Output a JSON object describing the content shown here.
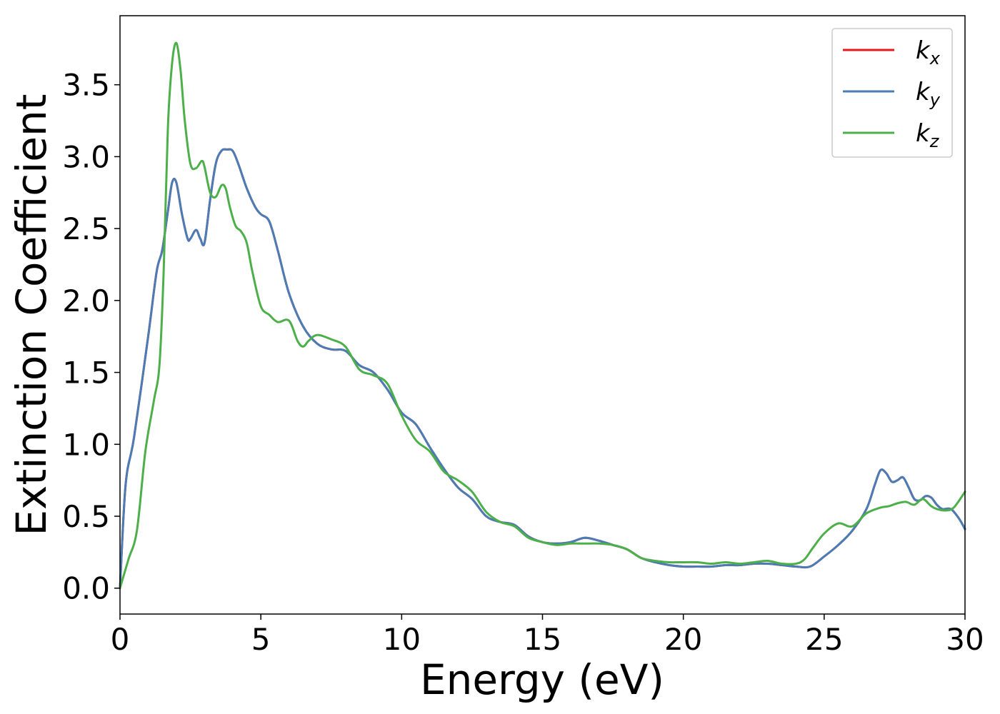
{
  "chart_data": {
    "type": "line",
    "title": "",
    "xlabel": "Energy (eV)",
    "ylabel": "Extinction Coefficient",
    "xlim": [
      0,
      30
    ],
    "ylim": [
      -0.18,
      3.98
    ],
    "xticks": [
      0,
      5,
      10,
      15,
      20,
      25,
      30
    ],
    "xtick_labels": [
      "0",
      "5",
      "10",
      "15",
      "20",
      "25",
      "30"
    ],
    "yticks": [
      0.0,
      0.5,
      1.0,
      1.5,
      2.0,
      2.5,
      3.0,
      3.5
    ],
    "ytick_labels": [
      "0.0",
      "0.5",
      "1.0",
      "1.5",
      "2.0",
      "2.5",
      "3.0",
      "3.5"
    ],
    "grid": false,
    "legend_position": "top-right",
    "series": [
      {
        "name": "k_x",
        "label_base": "k",
        "label_sub": "x",
        "color": "#e41a1c",
        "x": [
          0,
          0.2,
          0.5,
          1.0,
          1.3,
          1.5,
          1.7,
          1.85,
          2.0,
          2.2,
          2.4,
          2.5,
          2.7,
          2.85,
          3.0,
          3.2,
          3.4,
          3.6,
          3.8,
          4.0,
          4.2,
          4.5,
          4.8,
          5.0,
          5.3,
          5.6,
          6.0,
          6.5,
          7.0,
          7.5,
          8.0,
          8.5,
          9.0,
          9.5,
          10.0,
          10.5,
          11.0,
          11.5,
          12.0,
          12.5,
          13.0,
          13.5,
          14.0,
          14.5,
          15.0,
          15.5,
          16.0,
          16.5,
          17.0,
          17.5,
          18.0,
          18.5,
          19.0,
          19.5,
          20.0,
          20.5,
          21.0,
          21.5,
          22.0,
          22.5,
          23.0,
          23.5,
          24.0,
          24.5,
          25.0,
          25.5,
          26.0,
          26.5,
          26.8,
          27.0,
          27.2,
          27.4,
          27.6,
          27.8,
          28.0,
          28.2,
          28.4,
          28.6,
          28.8,
          29.0,
          29.2,
          29.5,
          29.8,
          30.0
        ],
        "y": [
          0.0,
          0.72,
          1.05,
          1.75,
          2.2,
          2.35,
          2.62,
          2.82,
          2.82,
          2.6,
          2.43,
          2.43,
          2.49,
          2.43,
          2.4,
          2.7,
          2.95,
          3.04,
          3.05,
          3.04,
          2.95,
          2.78,
          2.65,
          2.6,
          2.55,
          2.35,
          2.05,
          1.82,
          1.7,
          1.66,
          1.65,
          1.55,
          1.5,
          1.38,
          1.22,
          1.14,
          0.98,
          0.83,
          0.7,
          0.62,
          0.5,
          0.46,
          0.44,
          0.36,
          0.32,
          0.31,
          0.32,
          0.35,
          0.33,
          0.3,
          0.27,
          0.21,
          0.18,
          0.16,
          0.15,
          0.15,
          0.15,
          0.16,
          0.16,
          0.17,
          0.17,
          0.16,
          0.15,
          0.15,
          0.22,
          0.3,
          0.4,
          0.55,
          0.72,
          0.82,
          0.8,
          0.74,
          0.75,
          0.77,
          0.7,
          0.62,
          0.61,
          0.64,
          0.63,
          0.58,
          0.55,
          0.55,
          0.48,
          0.41
        ]
      },
      {
        "name": "k_y",
        "label_base": "k",
        "label_sub": "y",
        "color": "#4a7cb5",
        "x": [
          0,
          0.2,
          0.5,
          1.0,
          1.3,
          1.5,
          1.7,
          1.85,
          2.0,
          2.2,
          2.4,
          2.5,
          2.7,
          2.85,
          3.0,
          3.2,
          3.4,
          3.6,
          3.8,
          4.0,
          4.2,
          4.5,
          4.8,
          5.0,
          5.3,
          5.6,
          6.0,
          6.5,
          7.0,
          7.5,
          8.0,
          8.5,
          9.0,
          9.5,
          10.0,
          10.5,
          11.0,
          11.5,
          12.0,
          12.5,
          13.0,
          13.5,
          14.0,
          14.5,
          15.0,
          15.5,
          16.0,
          16.5,
          17.0,
          17.5,
          18.0,
          18.5,
          19.0,
          19.5,
          20.0,
          20.5,
          21.0,
          21.5,
          22.0,
          22.5,
          23.0,
          23.5,
          24.0,
          24.5,
          25.0,
          25.5,
          26.0,
          26.5,
          26.8,
          27.0,
          27.2,
          27.4,
          27.6,
          27.8,
          28.0,
          28.2,
          28.4,
          28.6,
          28.8,
          29.0,
          29.2,
          29.5,
          29.8,
          30.0
        ],
        "y": [
          0.0,
          0.72,
          1.05,
          1.75,
          2.2,
          2.35,
          2.62,
          2.82,
          2.82,
          2.6,
          2.43,
          2.43,
          2.49,
          2.43,
          2.4,
          2.7,
          2.95,
          3.04,
          3.05,
          3.04,
          2.95,
          2.78,
          2.65,
          2.6,
          2.55,
          2.35,
          2.05,
          1.82,
          1.7,
          1.66,
          1.65,
          1.55,
          1.5,
          1.38,
          1.22,
          1.14,
          0.98,
          0.83,
          0.7,
          0.62,
          0.5,
          0.46,
          0.44,
          0.36,
          0.32,
          0.31,
          0.32,
          0.35,
          0.33,
          0.3,
          0.27,
          0.21,
          0.18,
          0.16,
          0.15,
          0.15,
          0.15,
          0.16,
          0.16,
          0.17,
          0.17,
          0.16,
          0.15,
          0.15,
          0.22,
          0.3,
          0.4,
          0.55,
          0.72,
          0.82,
          0.8,
          0.74,
          0.75,
          0.77,
          0.7,
          0.62,
          0.61,
          0.64,
          0.63,
          0.58,
          0.55,
          0.55,
          0.48,
          0.41
        ]
      },
      {
        "name": "k_z",
        "label_base": "k",
        "label_sub": "z",
        "color": "#4daf4a",
        "x": [
          0,
          0.3,
          0.6,
          0.9,
          1.2,
          1.4,
          1.55,
          1.7,
          1.85,
          2.0,
          2.15,
          2.3,
          2.5,
          2.7,
          2.9,
          3.0,
          3.2,
          3.4,
          3.6,
          3.75,
          3.9,
          4.1,
          4.3,
          4.5,
          4.7,
          5.0,
          5.3,
          5.6,
          6.0,
          6.3,
          6.5,
          6.7,
          7.0,
          7.5,
          8.0,
          8.5,
          9.0,
          9.5,
          10.0,
          10.5,
          11.0,
          11.5,
          12.0,
          12.5,
          13.0,
          13.5,
          14.0,
          14.5,
          15.0,
          15.5,
          16.0,
          16.5,
          17.0,
          17.5,
          18.0,
          18.5,
          19.0,
          19.5,
          20.0,
          20.5,
          21.0,
          21.5,
          22.0,
          22.5,
          23.0,
          23.5,
          24.0,
          24.3,
          24.6,
          25.0,
          25.5,
          26.0,
          26.5,
          27.0,
          27.3,
          27.6,
          27.9,
          28.2,
          28.5,
          28.8,
          29.0,
          29.3,
          29.6,
          30.0
        ],
        "y": [
          0.0,
          0.2,
          0.4,
          0.95,
          1.3,
          1.55,
          2.2,
          3.2,
          3.65,
          3.79,
          3.6,
          3.25,
          2.95,
          2.92,
          2.97,
          2.93,
          2.75,
          2.72,
          2.8,
          2.78,
          2.65,
          2.52,
          2.48,
          2.4,
          2.2,
          1.96,
          1.9,
          1.85,
          1.86,
          1.72,
          1.68,
          1.72,
          1.76,
          1.73,
          1.68,
          1.52,
          1.48,
          1.42,
          1.2,
          1.03,
          0.95,
          0.81,
          0.75,
          0.67,
          0.53,
          0.46,
          0.43,
          0.35,
          0.32,
          0.3,
          0.31,
          0.31,
          0.31,
          0.3,
          0.27,
          0.21,
          0.19,
          0.18,
          0.18,
          0.18,
          0.17,
          0.18,
          0.17,
          0.18,
          0.19,
          0.17,
          0.17,
          0.2,
          0.28,
          0.38,
          0.45,
          0.43,
          0.52,
          0.56,
          0.57,
          0.59,
          0.6,
          0.58,
          0.62,
          0.57,
          0.55,
          0.54,
          0.56,
          0.67
        ]
      }
    ]
  }
}
